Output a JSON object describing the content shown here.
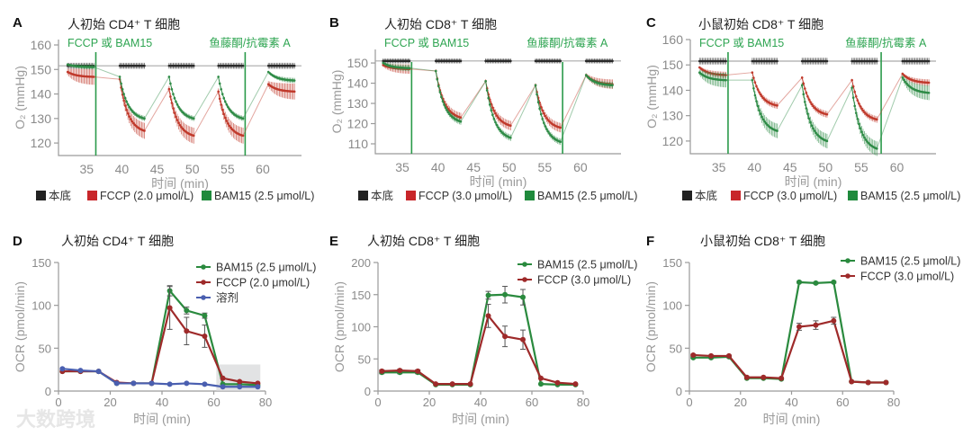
{
  "watermark": "大数跨境",
  "chart_data": [
    {
      "panel": "A",
      "type": "line",
      "title": "人初始 CD4⁺ T 细胞",
      "xlabel": "时间 (min)",
      "ylabel": "O₂ (mmHg)",
      "xlim": [
        31,
        65.5
      ],
      "ylim": [
        114.9,
        162.2
      ],
      "xticks": [
        35,
        40,
        45,
        50,
        55,
        60
      ],
      "yticks": [
        120,
        130,
        140,
        150,
        160
      ],
      "annotations": [
        {
          "text": "FCCP 或 BAM15",
          "x": 36.3
        },
        {
          "text": "鱼藤酮/抗霉素 A",
          "x": 57.5
        }
      ],
      "baseline": 151.5,
      "series": [
        {
          "name": "本底",
          "color": "#2a2a2a",
          "err": 1.2,
          "windows": [
            [
              32.3,
              36,
              151.5,
              151.5
            ],
            [
              39.7,
              43.2,
              151.5,
              151.5
            ],
            [
              46.7,
              50.2,
              151.5,
              151.5
            ],
            [
              53.7,
              57.2,
              151.5,
              151.5
            ],
            [
              60.8,
              64.5,
              151.5,
              151.5
            ]
          ]
        },
        {
          "name": "FCCP (2.0 μmol/L)",
          "color": "#c0392b",
          "err": 2.5,
          "windows": [
            [
              32.3,
              36,
              149,
              147
            ],
            [
              39.7,
              43.2,
              146,
              125
            ],
            [
              46.7,
              50.2,
              142,
              123
            ],
            [
              53.7,
              57.2,
              141,
              123
            ],
            [
              60.8,
              64.5,
              144,
              141
            ]
          ]
        },
        {
          "name": "BAM15 (2.5 μmol/L)",
          "color": "#2e8b46",
          "err": 0.8,
          "windows": [
            [
              32.3,
              36,
              152,
              151
            ],
            [
              39.7,
              43.2,
              147,
              130
            ],
            [
              46.7,
              50.2,
              147,
              130
            ],
            [
              53.7,
              57.2,
              147,
              130
            ],
            [
              60.8,
              64.5,
              149,
              145.5
            ]
          ]
        }
      ]
    },
    {
      "panel": "B",
      "type": "line",
      "title": "人初始 CD8⁺ T 细胞",
      "xlabel": "时间 (min)",
      "ylabel": "O₂ (mmHg)",
      "xlim": [
        31.2,
        65.7
      ],
      "ylim": [
        105.1,
        156.7
      ],
      "xticks": [
        35,
        40,
        45,
        50,
        55,
        60
      ],
      "yticks": [
        110,
        120,
        130,
        140,
        150
      ],
      "annotations": [
        {
          "text": "FCCP 或 BAM15",
          "x": 36.3
        },
        {
          "text": "鱼藤酮/抗霉素 A",
          "x": 57.5
        }
      ],
      "baseline": 151,
      "series": [
        {
          "name": "本底",
          "color": "#2a2a2a",
          "err": 1.2,
          "windows": [
            [
              32.3,
              36,
              151,
              151
            ],
            [
              39.7,
              43.2,
              151,
              151
            ],
            [
              46.7,
              50.2,
              151,
              151
            ],
            [
              53.7,
              57.2,
              151,
              151
            ],
            [
              60.8,
              64.5,
              151,
              151
            ]
          ]
        },
        {
          "name": "FCCP (3.0 μmol/L)",
          "color": "#c0392b",
          "err": 1.8,
          "windows": [
            [
              32.3,
              36,
              149,
              147
            ],
            [
              39.7,
              43.2,
              146,
              123
            ],
            [
              46.7,
              50.2,
              141,
              119
            ],
            [
              53.7,
              57.2,
              139,
              118
            ],
            [
              60.8,
              64.5,
              144,
              139.5
            ]
          ]
        },
        {
          "name": "BAM15 (2.5 μmol/L)",
          "color": "#2e8b46",
          "err": 1.2,
          "windows": [
            [
              32.3,
              36,
              150,
              147.5
            ],
            [
              39.7,
              43.2,
              146,
              121
            ],
            [
              46.7,
              50.2,
              141,
              113
            ],
            [
              53.7,
              57.2,
              139,
              111
            ],
            [
              60.8,
              64.5,
              144,
              139
            ]
          ]
        }
      ]
    },
    {
      "panel": "C",
      "type": "line",
      "title": "小鼠初始 CD8⁺ T 细胞",
      "xlabel": "时间 (min)",
      "ylabel": "O₂ (mmHg)",
      "xlim": [
        31.0,
        65.5
      ],
      "ylim": [
        115.0,
        160.0
      ],
      "xticks": [
        35,
        40,
        45,
        50,
        55,
        60
      ],
      "yticks": [
        120,
        130,
        140,
        150,
        160
      ],
      "annotations": [
        {
          "text": "FCCP 或 BAM15",
          "x": 36.3
        },
        {
          "text": "鱼藤酮/抗霉素 A",
          "x": 57.8
        }
      ],
      "baseline": 151.5,
      "series": [
        {
          "name": "本底",
          "color": "#2a2a2a",
          "err": 1.3,
          "windows": [
            [
              32.3,
              36,
              151.5,
              151.5
            ],
            [
              39.7,
              43.2,
              151.5,
              151.5
            ],
            [
              46.7,
              50.2,
              151.5,
              151.5
            ],
            [
              53.7,
              57.2,
              151.5,
              151.5
            ],
            [
              60.8,
              64.5,
              151.5,
              151.5
            ]
          ]
        },
        {
          "name": "FCCP (3.0 μmol/L)",
          "color": "#c0392b",
          "err": 1.0,
          "windows": [
            [
              32.3,
              36,
              149,
              146
            ],
            [
              39.7,
              43.2,
              147,
              134
            ],
            [
              46.7,
              50.2,
              145,
              130.5
            ],
            [
              53.7,
              57.2,
              144,
              128.5
            ],
            [
              60.8,
              64.5,
              146.5,
              143
            ]
          ]
        },
        {
          "name": "BAM15 (2.5 μmol/L)",
          "color": "#2e8b46",
          "err": 2.2,
          "windows": [
            [
              32.3,
              36,
              147,
              144
            ],
            [
              39.7,
              43.2,
              144,
              124
            ],
            [
              46.7,
              50.2,
              142,
              120
            ],
            [
              53.7,
              57.2,
              141,
              117
            ],
            [
              60.8,
              64.5,
              145,
              139
            ]
          ]
        }
      ]
    },
    {
      "panel": "D",
      "type": "line",
      "title": "人初始 CD4⁺ T 细胞",
      "xlabel": "时间 (min)",
      "ylabel": "OCR (pmol/min)",
      "xlim": [
        0,
        80
      ],
      "ylim": [
        0,
        150
      ],
      "xticks": [
        0,
        20,
        40,
        60,
        80
      ],
      "yticks": [
        0,
        50,
        100,
        150
      ],
      "x": [
        1.5,
        8.5,
        15.5,
        22.5,
        29,
        36,
        43,
        49.5,
        56.5,
        63.5,
        70,
        77
      ],
      "shaded_region": {
        "x": [
          61,
          78
        ],
        "y": [
          0,
          31
        ]
      },
      "series": [
        {
          "name": "BAM15 (2.5 μmol/L)",
          "color": "#2a8a3e",
          "values": [
            23,
            23,
            23,
            9,
            9,
            9,
            117,
            94,
            88,
            8,
            8,
            7
          ],
          "err": [
            0,
            0,
            0,
            0,
            0,
            0,
            6,
            4,
            3,
            0,
            0,
            0
          ]
        },
        {
          "name": "FCCP (2.0 μmol/L)",
          "color": "#9e2a2a",
          "values": [
            23,
            23,
            23,
            10,
            9,
            9,
            97,
            70,
            64,
            15,
            11,
            9
          ],
          "err": [
            0,
            0,
            0,
            0,
            0,
            0,
            25,
            16,
            13,
            0,
            0,
            0
          ]
        },
        {
          "name": "溶剂",
          "color": "#4a5fb0",
          "values": [
            26,
            24,
            23,
            9,
            9,
            9,
            8,
            9,
            8,
            5,
            5,
            5
          ],
          "err": [
            0,
            0,
            0,
            0,
            0,
            0,
            0,
            0,
            0,
            0,
            0,
            0
          ]
        }
      ]
    },
    {
      "panel": "E",
      "type": "line",
      "title": "人初始 CD8⁺ T 细胞",
      "xlabel": "时间 (min)",
      "ylabel": "OCR (pmol/min)",
      "xlim": [
        0,
        80
      ],
      "ylim": [
        0,
        200
      ],
      "xticks": [
        0,
        20,
        40,
        60,
        80
      ],
      "yticks": [
        0,
        50,
        100,
        150,
        200
      ],
      "x": [
        1.5,
        8.5,
        15.5,
        22.5,
        29,
        36,
        43,
        49.5,
        56.5,
        63.5,
        70,
        77
      ],
      "series": [
        {
          "name": "BAM15 (2.5 μmol/L)",
          "color": "#2a8a3e",
          "values": [
            29,
            29,
            29,
            10,
            10,
            10,
            149,
            150,
            146,
            11,
            10,
            10
          ],
          "err": [
            2,
            2,
            2,
            0,
            0,
            0,
            6,
            13,
            12,
            0,
            0,
            0
          ]
        },
        {
          "name": "FCCP (3.0 μmol/L)",
          "color": "#9e2a2a",
          "values": [
            31,
            32,
            31,
            11,
            11,
            11,
            117,
            85,
            80,
            20,
            13,
            11
          ],
          "err": [
            2,
            2,
            2,
            0,
            0,
            0,
            18,
            16,
            15,
            0,
            0,
            0
          ]
        }
      ]
    },
    {
      "panel": "F",
      "type": "line",
      "title": "小鼠初始 CD8⁺ T 细胞",
      "xlabel": "时间 (min)",
      "ylabel": "OCR (pmol/min)",
      "xlim": [
        0,
        80
      ],
      "ylim": [
        0,
        150
      ],
      "xticks": [
        0,
        20,
        40,
        60,
        80
      ],
      "yticks": [
        0,
        50,
        100,
        150
      ],
      "x": [
        1.5,
        8.5,
        15.5,
        22.5,
        29,
        36,
        43,
        49.5,
        56.5,
        63.5,
        70,
        77
      ],
      "series": [
        {
          "name": "BAM15 (2.5 μmol/L)",
          "color": "#2a8a3e",
          "values": [
            39,
            39,
            40,
            15,
            15,
            14,
            127,
            126,
            127,
            11,
            10,
            10
          ],
          "err": [
            1,
            1,
            1,
            0,
            0,
            0,
            1,
            1,
            1,
            0,
            0,
            0
          ]
        },
        {
          "name": "FCCP (3.0 μmol/L)",
          "color": "#9e2a2a",
          "values": [
            42,
            41,
            41,
            16,
            16,
            15,
            75,
            77,
            82,
            11,
            10,
            10
          ],
          "err": [
            1,
            1,
            1,
            0,
            0,
            0,
            4,
            5,
            4,
            0,
            0,
            0
          ]
        }
      ]
    }
  ]
}
